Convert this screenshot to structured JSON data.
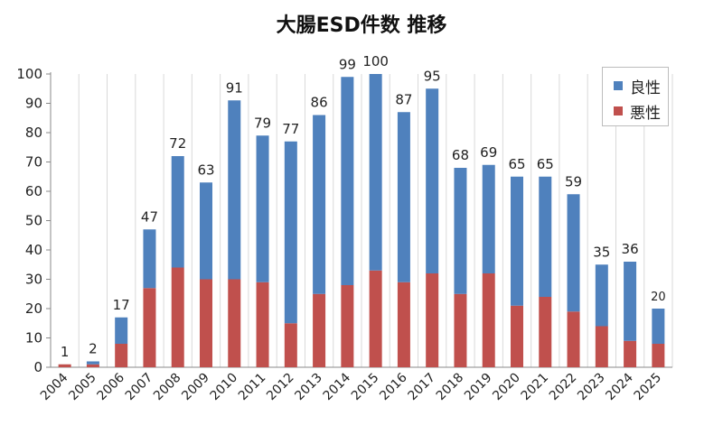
{
  "chart_data": {
    "type": "bar",
    "stacked": true,
    "title": "大腸ESD件数 推移",
    "categories": [
      "2004",
      "2005",
      "2006",
      "2007",
      "2008",
      "2009",
      "2010",
      "2011",
      "2012",
      "2013",
      "2014",
      "2015",
      "2016",
      "2017",
      "2018",
      "2019",
      "2020",
      "2021",
      "2022",
      "2023",
      "2024",
      "2025"
    ],
    "series": [
      {
        "name": "悪性",
        "color": "#c0504d",
        "values": [
          1,
          1,
          8,
          27,
          34,
          30,
          30,
          29,
          15,
          25,
          28,
          33,
          29,
          32,
          25,
          32,
          21,
          24,
          19,
          14,
          9,
          8
        ]
      },
      {
        "name": "良性",
        "color": "#4f81bd",
        "values": [
          0,
          1,
          9,
          20,
          38,
          33,
          61,
          50,
          62,
          61,
          71,
          67,
          58,
          63,
          43,
          37,
          44,
          41,
          40,
          21,
          27,
          12
        ]
      }
    ],
    "totals": [
      1,
      2,
      17,
      47,
      72,
      63,
      91,
      79,
      77,
      86,
      99,
      100,
      87,
      95,
      68,
      69,
      65,
      65,
      59,
      35,
      36,
      20
    ],
    "ylim": [
      0,
      100
    ],
    "yticks": [
      0,
      10,
      20,
      30,
      40,
      50,
      60,
      70,
      80,
      90,
      100
    ],
    "grid": "vertical-category",
    "legend_position": "top-right",
    "xlabel": "",
    "ylabel": ""
  }
}
